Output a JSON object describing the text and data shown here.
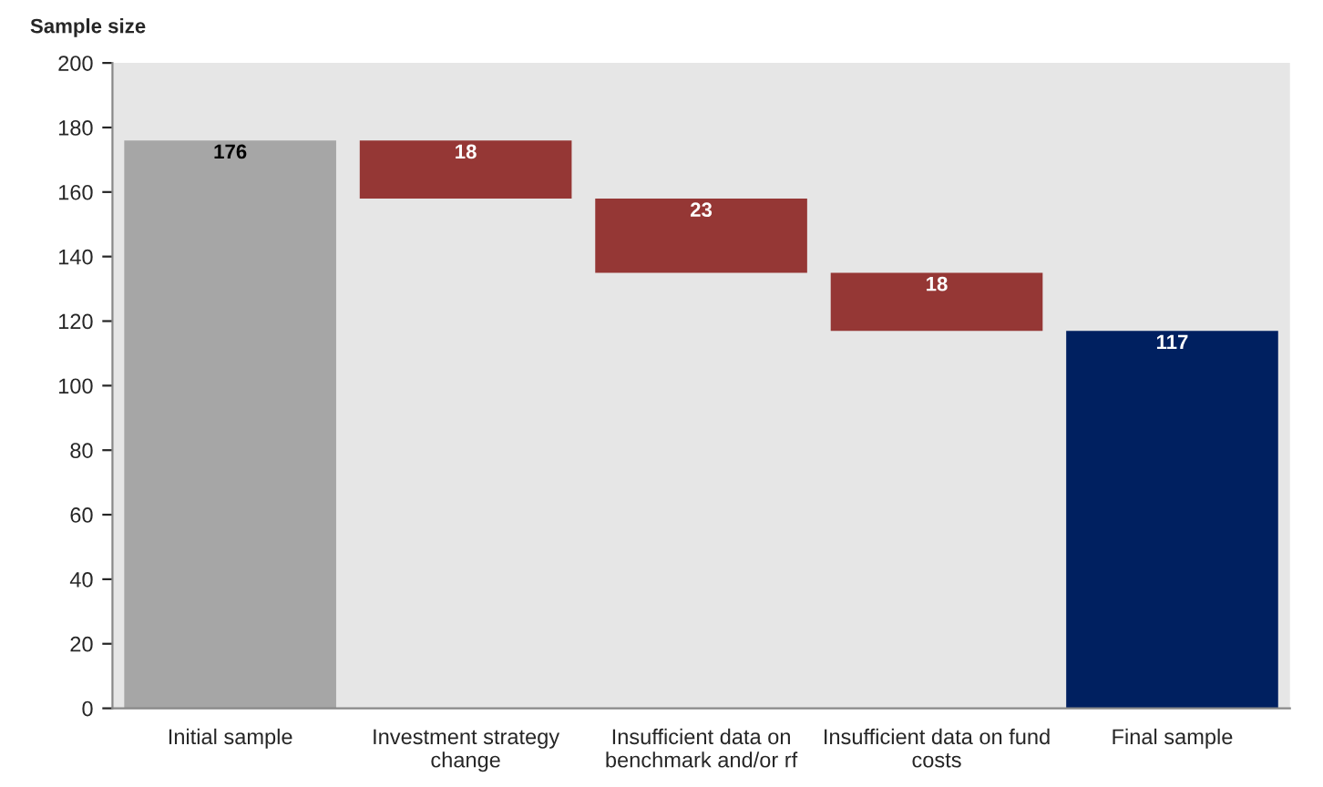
{
  "chart_data": {
    "type": "bar",
    "ylabel": "Sample size",
    "categories": [
      "Initial sample",
      "Investment strategy\nchange",
      "Insufficient data on\nbenchmark and/or rf",
      "Insufficient data on fund\ncosts",
      "Final sample"
    ],
    "values": [
      176,
      18,
      23,
      18,
      117
    ],
    "base": [
      0,
      158,
      135,
      117,
      0
    ],
    "colors": [
      "#a6a6a6",
      "#953735",
      "#953735",
      "#953735",
      "#002060"
    ],
    "ylim": [
      0,
      200
    ],
    "yticks": [
      0,
      20,
      40,
      60,
      80,
      100,
      120,
      140,
      160,
      180,
      200
    ],
    "data_labels": true,
    "grid": false
  }
}
